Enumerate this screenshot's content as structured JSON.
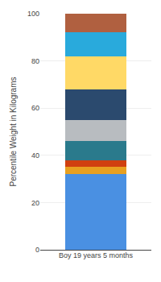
{
  "chart_data": {
    "type": "bar",
    "categories": [
      "Boy 19 years 5 months"
    ],
    "series": [
      {
        "color": "#4a90e2",
        "values": [
          32
        ]
      },
      {
        "color": "#e8a020",
        "values": [
          3
        ]
      },
      {
        "color": "#d04010",
        "values": [
          3
        ]
      },
      {
        "color": "#2a7a8c",
        "values": [
          8
        ]
      },
      {
        "color": "#b8bcc0",
        "values": [
          9
        ]
      },
      {
        "color": "#2b4a6e",
        "values": [
          13
        ]
      },
      {
        "color": "#ffd966",
        "values": [
          14
        ]
      },
      {
        "color": "#29aadc",
        "values": [
          10
        ]
      },
      {
        "color": "#b06040",
        "values": [
          8
        ]
      }
    ],
    "ylabel": "Percentile Weight in Kilograms",
    "ylim": [
      0,
      100
    ],
    "yticks": [
      0,
      20,
      40,
      60,
      80,
      100
    ],
    "stacked": true,
    "grid": true
  }
}
